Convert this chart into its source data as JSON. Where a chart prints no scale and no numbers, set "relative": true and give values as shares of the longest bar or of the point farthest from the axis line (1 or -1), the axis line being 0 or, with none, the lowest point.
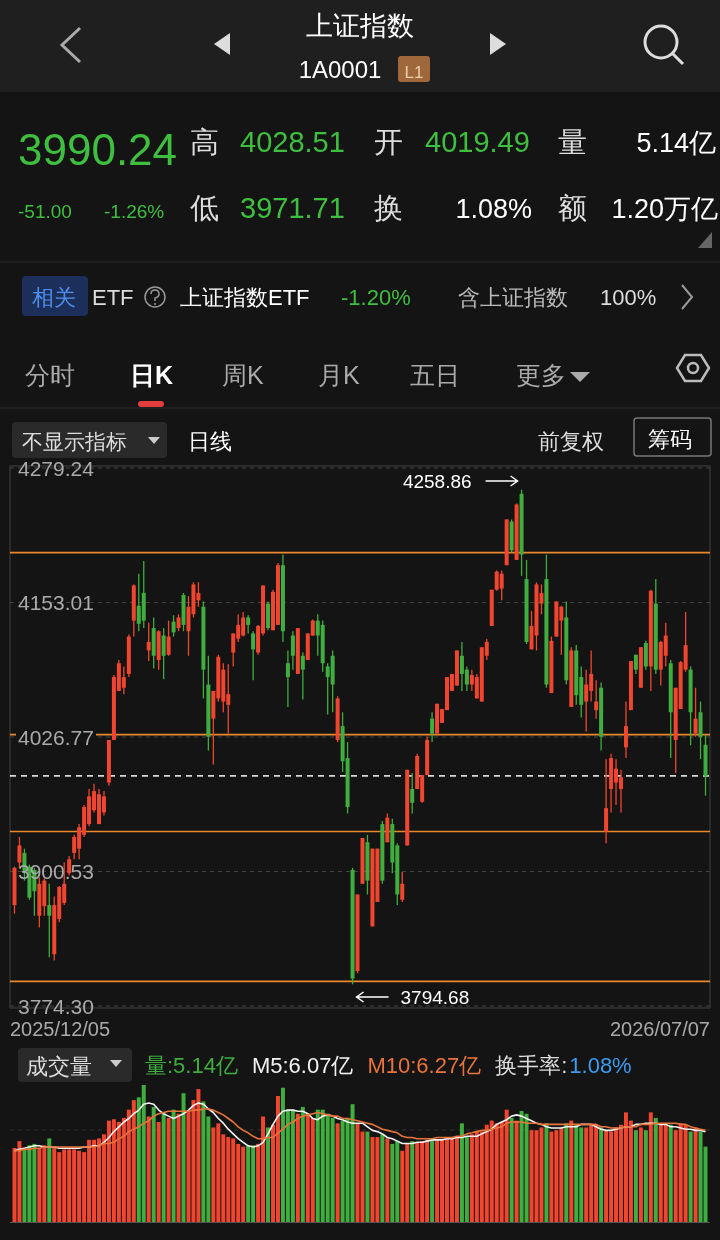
{
  "chart_data": [
    {
      "type": "other",
      "title": "上证指数",
      "subtitle": "1A0001",
      "annotations": [
        "L1",
        "3990.24",
        "-51.00",
        "-1.26%",
        "高",
        "4028.51",
        "开",
        "4019.49",
        "量",
        "5.14亿",
        "低",
        "3971.71",
        "换",
        "1.08%",
        "额",
        "1.20万亿",
        "相关",
        "ETF",
        "上证指数ETF",
        "-1.20%",
        "含上证指数",
        "100%",
        "分时",
        "日K",
        "周K",
        "月K",
        "五日",
        "更多",
        "不显示指标",
        "日线",
        "前复权",
        "筹码"
      ]
    },
    {
      "type": "candlestick",
      "ylim": [
        3774.3,
        4279.24
      ],
      "yticks": [
        {
          "value": 4279.24,
          "label": "4279.24"
        },
        {
          "value": 4153.01,
          "label": "4153.01"
        },
        {
          "value": 4026.77,
          "label": "4026.77"
        },
        {
          "value": 3900.53,
          "label": "3900.53"
        },
        {
          "value": 3774.3,
          "label": "3774.30"
        }
      ],
      "grid": "y",
      "categories": [
        null,
        null,
        null,
        null,
        null,
        null,
        null,
        null,
        null,
        null,
        null,
        null,
        null,
        null,
        null,
        null,
        null,
        null,
        null,
        null,
        null,
        null,
        null,
        null,
        null,
        null,
        null,
        null,
        null,
        null,
        null,
        null,
        null,
        null,
        null,
        null,
        null,
        null,
        null,
        null,
        null,
        null,
        null,
        null,
        null,
        null,
        null,
        null,
        null,
        null,
        null,
        null,
        null,
        null,
        null,
        null,
        null,
        null,
        null,
        null,
        null,
        null,
        null,
        null,
        null,
        null,
        null,
        null,
        null,
        null,
        null,
        null,
        null,
        null,
        null,
        null,
        null,
        null,
        null,
        null,
        null,
        null,
        null,
        null,
        null,
        null,
        null,
        null,
        null,
        null,
        null,
        null,
        null,
        null,
        null,
        null,
        null,
        null,
        null,
        null,
        null,
        null,
        null,
        null,
        null,
        null,
        null,
        null,
        null,
        null,
        null,
        null,
        null,
        null,
        null,
        null,
        null,
        null,
        null,
        null,
        null,
        null,
        null,
        null,
        null,
        null,
        null,
        null,
        null,
        null,
        null,
        null,
        null,
        null,
        null,
        null,
        null,
        null,
        null,
        null
      ],
      "ohlc": [
        [
          3869,
          3905,
          3861,
          3904
        ],
        [
          3909,
          3933,
          3904,
          3925
        ],
        [
          3918,
          3922,
          3892,
          3899
        ],
        [
          3905,
          3907,
          3874,
          3876
        ],
        [
          3902,
          3904,
          3859,
          3882
        ],
        [
          3859,
          3895,
          3848,
          3889
        ],
        [
          3868,
          3894,
          3859,
          3892
        ],
        [
          3869,
          3889,
          3820,
          3859
        ],
        [
          3823,
          3877,
          3817,
          3869
        ],
        [
          3856,
          3887,
          3853,
          3886
        ],
        [
          3871,
          3909,
          3869,
          3889
        ],
        [
          3899,
          3915,
          3897,
          3912
        ],
        [
          3918,
          3935,
          3912,
          3933
        ],
        [
          3922,
          3945,
          3912,
          3942
        ],
        [
          3935,
          3963,
          3933,
          3961
        ],
        [
          3945,
          3978,
          3943,
          3971
        ],
        [
          3958,
          3983,
          3956,
          3976
        ],
        [
          3945,
          3978,
          3945,
          3973
        ],
        [
          3956,
          3976,
          3953,
          3971
        ],
        [
          3984,
          4024,
          3981,
          4024
        ],
        [
          4024,
          4085,
          4024,
          4083
        ],
        [
          4070,
          4099,
          4070,
          4096
        ],
        [
          4073,
          4093,
          4067,
          4083
        ],
        [
          4086,
          4123,
          4083,
          4121
        ],
        [
          4136,
          4170,
          4121,
          4169
        ],
        [
          4150,
          4180,
          4126,
          4133
        ],
        [
          4162,
          4192,
          4129,
          4136
        ],
        [
          4108,
          4134,
          4098,
          4116
        ],
        [
          4129,
          4139,
          4091,
          4103
        ],
        [
          4099,
          4127,
          4090,
          4126
        ],
        [
          4122,
          4129,
          4081,
          4103
        ],
        [
          4104,
          4136,
          4103,
          4121
        ],
        [
          4135,
          4141,
          4121,
          4125
        ],
        [
          4129,
          4142,
          4126,
          4139
        ],
        [
          4160,
          4162,
          4126,
          4132
        ],
        [
          4126,
          4159,
          4103,
          4149
        ],
        [
          4142,
          4172,
          4139,
          4170
        ],
        [
          4155,
          4172,
          4149,
          4162
        ],
        [
          4149,
          4154,
          4063,
          4090
        ],
        [
          4076,
          4103,
          4014,
          4027
        ],
        [
          4044,
          4070,
          4001,
          4070
        ],
        [
          4063,
          4104,
          4060,
          4102
        ],
        [
          4060,
          4096,
          4050,
          4090
        ],
        [
          4057,
          4095,
          4030,
          4067
        ],
        [
          4106,
          4124,
          4093,
          4124
        ],
        [
          4119,
          4142,
          4116,
          4132
        ],
        [
          4122,
          4144,
          4121,
          4139
        ],
        [
          4139,
          4141,
          4124,
          4132
        ],
        [
          4124,
          4126,
          4080,
          4109
        ],
        [
          4106,
          4132,
          4104,
          4131
        ],
        [
          4124,
          4169,
          4122,
          4169
        ],
        [
          4152,
          4154,
          4127,
          4129
        ],
        [
          4127,
          4165,
          4127,
          4163
        ],
        [
          4132,
          4190,
          4132,
          4188
        ],
        [
          4188,
          4198,
          4116,
          4126
        ],
        [
          4096,
          4108,
          4055,
          4083
        ],
        [
          4122,
          4126,
          4090,
          4103
        ],
        [
          4086,
          4129,
          4086,
          4129
        ],
        [
          4103,
          4106,
          4062,
          4090
        ],
        [
          4099,
          4124,
          4099,
          4124
        ],
        [
          4122,
          4137,
          4122,
          4136
        ],
        [
          4136,
          4142,
          4103,
          4122
        ],
        [
          4132,
          4136,
          4088,
          4096
        ],
        [
          4093,
          4096,
          4048,
          4083
        ],
        [
          4103,
          4108,
          4050,
          4076
        ],
        [
          4024,
          4065,
          4022,
          4063
        ],
        [
          4037,
          4050,
          3994,
          4004
        ],
        [
          4007,
          4022,
          3955,
          3961
        ],
        [
          3902,
          3904,
          3794.68,
          3800
        ],
        [
          3807,
          3879,
          3805,
          3879
        ],
        [
          3889,
          3932,
          3889,
          3932
        ],
        [
          3928,
          3935,
          3879,
          3892
        ],
        [
          3849,
          3922,
          3849,
          3922
        ],
        [
          3872,
          3922,
          3872,
          3922
        ],
        [
          3945,
          3948,
          3889,
          3892
        ],
        [
          3928,
          3955,
          3928,
          3951
        ],
        [
          3945,
          3950,
          3899,
          3909
        ],
        [
          3925,
          3927,
          3869,
          3879
        ],
        [
          3874,
          3900,
          3872,
          3889
        ],
        [
          3925,
          3996,
          3925,
          3996
        ],
        [
          3978,
          3993,
          3955,
          3965
        ],
        [
          3978,
          4011,
          3978,
          4009
        ],
        [
          3966,
          3991,
          3965,
          3991
        ],
        [
          3991,
          4027,
          3991,
          4024
        ],
        [
          4044,
          4050,
          4022,
          4030
        ],
        [
          4030,
          4058,
          4030,
          4058
        ],
        [
          4040,
          4053,
          4040,
          4053
        ],
        [
          4052,
          4083,
          4052,
          4083
        ],
        [
          4070,
          4086,
          4070,
          4086
        ],
        [
          4075,
          4108,
          4075,
          4108
        ],
        [
          4103,
          4116,
          4070,
          4086
        ],
        [
          4090,
          4093,
          4070,
          4076
        ],
        [
          4076,
          4090,
          4070,
          4085
        ],
        [
          4063,
          4086,
          4063,
          4083
        ],
        [
          4060,
          4111,
          4060,
          4111
        ],
        [
          4103,
          4119,
          4099,
          4116
        ],
        [
          4131,
          4165,
          4131,
          4165
        ],
        [
          4165,
          4183,
          4164,
          4182
        ],
        [
          4166,
          4183,
          4155,
          4180
        ],
        [
          4188,
          4231,
          4188,
          4231
        ],
        [
          4229,
          4231,
          4200,
          4202
        ],
        [
          4193,
          4246,
          4193,
          4245
        ],
        [
          4255,
          4258.86,
          4178,
          4198
        ],
        [
          4175,
          4193,
          4114,
          4116
        ],
        [
          4109,
          4145,
          4109,
          4131
        ],
        [
          4122,
          4172,
          4108,
          4170
        ],
        [
          4152,
          4170,
          4142,
          4162
        ],
        [
          4175,
          4198,
          4073,
          4076
        ],
        [
          4068,
          4121,
          4068,
          4117
        ],
        [
          4121,
          4154,
          4121,
          4154
        ],
        [
          4136,
          4150,
          4104,
          4149
        ],
        [
          4139,
          4154,
          4076,
          4080
        ],
        [
          4055,
          4111,
          4055,
          4108
        ],
        [
          4108,
          4113,
          4057,
          4066
        ],
        [
          4083,
          4093,
          4045,
          4057
        ],
        [
          4060,
          4090,
          4032,
          4076
        ],
        [
          4070,
          4108,
          4060,
          4086
        ],
        [
          4052,
          4080,
          4044,
          4060
        ],
        [
          4073,
          4078,
          4014,
          4027
        ],
        [
          3938,
          4006,
          3927,
          3960
        ],
        [
          3978,
          4011,
          3956,
          4007
        ],
        [
          3984,
          4006,
          3963,
          3997
        ],
        [
          3978,
          3996,
          3956,
          3989
        ],
        [
          4017,
          4060,
          4007,
          4037
        ],
        [
          4052,
          4098,
          4052,
          4098
        ],
        [
          4104,
          4104,
          4086,
          4090
        ],
        [
          4073,
          4111,
          4073,
          4111
        ],
        [
          4115,
          4117,
          4090,
          4093
        ],
        [
          4093,
          4165,
          4070,
          4164
        ],
        [
          4152,
          4175,
          4086,
          4090
        ],
        [
          4090,
          4117,
          4075,
          4116
        ],
        [
          4103,
          4134,
          4093,
          4122
        ],
        [
          4096,
          4099,
          4007,
          4050
        ],
        [
          4024,
          4073,
          3993,
          4073
        ],
        [
          4053,
          4098,
          4053,
          4097
        ],
        [
          4090,
          4144,
          4088,
          4113
        ],
        [
          4090,
          4093,
          4019,
          4050
        ],
        [
          4030,
          4073,
          4027,
          4044
        ],
        [
          4050,
          4060,
          4006,
          4027
        ],
        [
          4019.49,
          4028.51,
          3971.71,
          3990.24
        ]
      ],
      "colors": [
        "#f0452f",
        "#f0452f",
        "#3fae3f",
        "#3fae3f",
        "#3fae3f",
        "#f0452f",
        "#f0452f",
        "#3fae3f",
        "#f0452f",
        "#f0452f",
        "#f0452f",
        "#f0452f",
        "#f0452f",
        "#f0452f",
        "#f0452f",
        "#f0452f",
        "#f0452f",
        "#f0452f",
        "#f0452f",
        "#f0452f",
        "#f0452f",
        "#f0452f",
        "#f0452f",
        "#f0452f",
        "#f0452f",
        "#3fae3f",
        "#3fae3f",
        "#f0452f",
        "#3fae3f",
        "#f0452f",
        "#3fae3f",
        "#f0452f",
        "#3fae3f",
        "#f0452f",
        "#3fae3f",
        "#f0452f",
        "#f0452f",
        "#f0452f",
        "#3fae3f",
        "#3fae3f",
        "#f0452f",
        "#f0452f",
        "#f0452f",
        "#f0452f",
        "#f0452f",
        "#f0452f",
        "#f0452f",
        "#3fae3f",
        "#3fae3f",
        "#f0452f",
        "#f0452f",
        "#3fae3f",
        "#f0452f",
        "#f0452f",
        "#3fae3f",
        "#3fae3f",
        "#3fae3f",
        "#f0452f",
        "#3fae3f",
        "#f0452f",
        "#f0452f",
        "#3fae3f",
        "#3fae3f",
        "#3fae3f",
        "#3fae3f",
        "#f0452f",
        "#3fae3f",
        "#3fae3f",
        "#3fae3f",
        "#f0452f",
        "#f0452f",
        "#3fae3f",
        "#f0452f",
        "#f0452f",
        "#3fae3f",
        "#f0452f",
        "#3fae3f",
        "#3fae3f",
        "#f0452f",
        "#f0452f",
        "#3fae3f",
        "#f0452f",
        "#f0452f",
        "#f0452f",
        "#3fae3f",
        "#f0452f",
        "#f0452f",
        "#f0452f",
        "#f0452f",
        "#f0452f",
        "#3fae3f",
        "#3fae3f",
        "#f0452f",
        "#f0452f",
        "#f0452f",
        "#f0452f",
        "#f0452f",
        "#f0452f",
        "#f0452f",
        "#f0452f",
        "#3fae3f",
        "#f0452f",
        "#3fae3f",
        "#3fae3f",
        "#f0452f",
        "#f0452f",
        "#f0452f",
        "#3fae3f",
        "#f0452f",
        "#f0452f",
        "#f0452f",
        "#3fae3f",
        "#f0452f",
        "#3fae3f",
        "#3fae3f",
        "#f0452f",
        "#f0452f",
        "#f0452f",
        "#3fae3f",
        "#f0452f",
        "#f0452f",
        "#f0452f",
        "#f0452f",
        "#f0452f",
        "#f0452f",
        "#3fae3f",
        "#f0452f",
        "#3fae3f",
        "#f0452f",
        "#3fae3f",
        "#f0452f",
        "#f0452f",
        "#3fae3f",
        "#f0452f",
        "#f0452f",
        "#f0452f",
        "#3fae3f",
        "#f0452f",
        "#3fae3f",
        "#3fae3f"
      ],
      "ref_lines": [
        {
          "axis": "y",
          "value": 4199.8,
          "color": "#e8892f"
        },
        {
          "axis": "y",
          "value": 4029.0,
          "color": "#e8892f"
        },
        {
          "axis": "y",
          "value": 3938.1,
          "color": "#e8892f"
        },
        {
          "axis": "y",
          "value": 3797.4,
          "color": "#e8892f"
        },
        {
          "axis": "y",
          "value": 3990.24,
          "color": "#d8d8d8",
          "line_style": "dashed"
        }
      ],
      "annotations": [
        "4258.86",
        "3794.68",
        "2025/12/05",
        "2026/07/07"
      ]
    },
    {
      "type": "bar",
      "relative": true,
      "title": "成交量",
      "annotations": [
        "量:5.14亿"
      ],
      "categories": [
        null,
        null,
        null,
        null,
        null,
        null,
        null,
        null,
        null,
        null,
        null,
        null,
        null,
        null,
        null,
        null,
        null,
        null,
        null,
        null,
        null,
        null,
        null,
        null,
        null,
        null,
        null,
        null,
        null,
        null,
        null,
        null,
        null,
        null,
        null,
        null,
        null,
        null,
        null,
        null,
        null,
        null,
        null,
        null,
        null,
        null,
        null,
        null,
        null,
        null,
        null,
        null,
        null,
        null,
        null,
        null,
        null,
        null,
        null,
        null,
        null,
        null,
        null,
        null,
        null,
        null,
        null,
        null,
        null,
        null,
        null,
        null,
        null,
        null,
        null,
        null,
        null,
        null,
        null,
        null,
        null,
        null,
        null,
        null,
        null,
        null,
        null,
        null,
        null,
        null,
        null,
        null,
        null,
        null,
        null,
        null,
        null,
        null,
        null,
        null,
        null,
        null,
        null,
        null,
        null,
        null,
        null,
        null,
        null,
        null,
        null,
        null,
        null,
        null,
        null,
        null,
        null,
        null,
        null,
        null,
        null,
        null,
        null,
        null,
        null,
        null,
        null,
        null,
        null,
        null,
        null,
        null,
        null,
        null,
        null,
        null,
        null,
        null,
        null,
        null
      ],
      "values": [
        0.54,
        0.59,
        0.54,
        0.56,
        0.57,
        0.54,
        0.56,
        0.61,
        0.54,
        0.51,
        0.53,
        0.53,
        0.53,
        0.52,
        0.51,
        0.6,
        0.6,
        0.61,
        0.64,
        0.74,
        0.75,
        0.73,
        0.76,
        0.82,
        0.89,
        0.91,
        1.0,
        0.77,
        0.84,
        0.73,
        0.8,
        0.76,
        0.82,
        0.79,
        0.94,
        0.81,
        0.89,
        0.97,
        0.88,
        0.77,
        0.69,
        0.72,
        0.64,
        0.62,
        0.61,
        0.57,
        0.55,
        0.56,
        0.56,
        0.57,
        0.77,
        0.69,
        0.71,
        0.92,
        0.98,
        0.82,
        0.82,
        0.79,
        0.84,
        0.79,
        0.76,
        0.82,
        0.82,
        0.79,
        0.76,
        0.72,
        0.74,
        0.76,
        0.86,
        0.72,
        0.66,
        0.66,
        0.62,
        0.62,
        0.64,
        0.61,
        0.57,
        0.59,
        0.52,
        0.57,
        0.59,
        0.58,
        0.59,
        0.6,
        0.6,
        0.6,
        0.6,
        0.62,
        0.62,
        0.62,
        0.72,
        0.62,
        0.64,
        0.66,
        0.66,
        0.71,
        0.74,
        0.72,
        0.73,
        0.82,
        0.76,
        0.74,
        0.81,
        0.79,
        0.67,
        0.67,
        0.69,
        0.72,
        0.66,
        0.67,
        0.69,
        0.72,
        0.74,
        0.71,
        0.69,
        0.69,
        0.71,
        0.71,
        0.69,
        0.67,
        0.66,
        0.69,
        0.71,
        0.8,
        0.74,
        0.67,
        0.69,
        0.67,
        0.8,
        0.76,
        0.71,
        0.72,
        0.71,
        0.67,
        0.72,
        0.71,
        0.66,
        0.69,
        0.66,
        0.55
      ],
      "colors": [
        "#f0452f",
        "#f0452f",
        "#3fae3f",
        "#3fae3f",
        "#3fae3f",
        "#f0452f",
        "#f0452f",
        "#3fae3f",
        "#f0452f",
        "#f0452f",
        "#f0452f",
        "#f0452f",
        "#f0452f",
        "#f0452f",
        "#f0452f",
        "#f0452f",
        "#f0452f",
        "#f0452f",
        "#f0452f",
        "#f0452f",
        "#f0452f",
        "#f0452f",
        "#f0452f",
        "#f0452f",
        "#f0452f",
        "#3fae3f",
        "#3fae3f",
        "#f0452f",
        "#3fae3f",
        "#f0452f",
        "#3fae3f",
        "#f0452f",
        "#3fae3f",
        "#f0452f",
        "#3fae3f",
        "#f0452f",
        "#f0452f",
        "#f0452f",
        "#3fae3f",
        "#3fae3f",
        "#f0452f",
        "#f0452f",
        "#f0452f",
        "#f0452f",
        "#f0452f",
        "#f0452f",
        "#f0452f",
        "#3fae3f",
        "#3fae3f",
        "#f0452f",
        "#f0452f",
        "#3fae3f",
        "#f0452f",
        "#f0452f",
        "#3fae3f",
        "#3fae3f",
        "#3fae3f",
        "#f0452f",
        "#3fae3f",
        "#f0452f",
        "#f0452f",
        "#3fae3f",
        "#3fae3f",
        "#3fae3f",
        "#3fae3f",
        "#f0452f",
        "#3fae3f",
        "#3fae3f",
        "#3fae3f",
        "#f0452f",
        "#f0452f",
        "#3fae3f",
        "#f0452f",
        "#f0452f",
        "#3fae3f",
        "#f0452f",
        "#3fae3f",
        "#3fae3f",
        "#f0452f",
        "#f0452f",
        "#3fae3f",
        "#f0452f",
        "#f0452f",
        "#f0452f",
        "#3fae3f",
        "#f0452f",
        "#f0452f",
        "#f0452f",
        "#f0452f",
        "#f0452f",
        "#3fae3f",
        "#3fae3f",
        "#f0452f",
        "#f0452f",
        "#f0452f",
        "#f0452f",
        "#f0452f",
        "#f0452f",
        "#f0452f",
        "#f0452f",
        "#3fae3f",
        "#f0452f",
        "#3fae3f",
        "#3fae3f",
        "#f0452f",
        "#f0452f",
        "#f0452f",
        "#3fae3f",
        "#f0452f",
        "#f0452f",
        "#f0452f",
        "#3fae3f",
        "#f0452f",
        "#3fae3f",
        "#3fae3f",
        "#f0452f",
        "#f0452f",
        "#f0452f",
        "#3fae3f",
        "#f0452f",
        "#f0452f",
        "#f0452f",
        "#f0452f",
        "#f0452f",
        "#f0452f",
        "#3fae3f",
        "#f0452f",
        "#3fae3f",
        "#f0452f",
        "#3fae3f",
        "#f0452f",
        "#f0452f",
        "#3fae3f",
        "#f0452f",
        "#f0452f",
        "#f0452f",
        "#3fae3f",
        "#f0452f",
        "#3fae3f",
        "#3fae3f"
      ]
    },
    {
      "type": "line",
      "relative": true,
      "legend": "top left",
      "annotations": [
        "换手率:",
        "1.08%"
      ],
      "categories": [
        null,
        null,
        null,
        null,
        null,
        null,
        null,
        null,
        null,
        null,
        null,
        null,
        null,
        null,
        null,
        null,
        null,
        null,
        null,
        null,
        null,
        null,
        null,
        null,
        null,
        null,
        null,
        null,
        null,
        null,
        null,
        null,
        null,
        null,
        null,
        null,
        null,
        null,
        null,
        null,
        null,
        null,
        null,
        null,
        null,
        null,
        null,
        null,
        null,
        null,
        null,
        null,
        null,
        null,
        null,
        null,
        null,
        null,
        null,
        null,
        null,
        null,
        null,
        null,
        null,
        null,
        null,
        null,
        null,
        null,
        null,
        null,
        null,
        null,
        null,
        null,
        null,
        null,
        null,
        null,
        null,
        null,
        null,
        null,
        null,
        null,
        null,
        null,
        null,
        null,
        null,
        null,
        null,
        null,
        null,
        null,
        null,
        null,
        null,
        null,
        null,
        null,
        null,
        null,
        null,
        null,
        null,
        null,
        null,
        null,
        null,
        null,
        null,
        null,
        null,
        null,
        null,
        null,
        null,
        null,
        null,
        null,
        null,
        null,
        null,
        null,
        null,
        null,
        null,
        null,
        null,
        null,
        null,
        null,
        null,
        null,
        null,
        null,
        null,
        null
      ],
      "series": [
        {
          "name": "M5:6.07亿",
          "color": "#f2f2f2",
          "values": [
            0.6,
            0.61,
            0.62,
            0.63,
            0.64,
            0.64,
            0.63,
            0.63,
            0.63,
            0.62,
            0.62,
            0.62,
            0.62,
            0.62,
            0.63,
            0.63,
            0.64,
            0.64,
            0.67,
            0.71,
            0.76,
            0.8,
            0.84,
            0.87,
            0.91,
            0.94,
            0.99,
            1.0,
            0.99,
            0.94,
            0.91,
            0.89,
            0.87,
            0.89,
            0.91,
            0.94,
            0.98,
            1.0,
            0.99,
            0.95,
            0.92,
            0.87,
            0.83,
            0.78,
            0.74,
            0.7,
            0.67,
            0.64,
            0.63,
            0.64,
            0.67,
            0.74,
            0.82,
            0.89,
            0.93,
            0.94,
            0.94,
            0.93,
            0.93,
            0.91,
            0.87,
            0.86,
            0.89,
            0.9,
            0.89,
            0.87,
            0.86,
            0.84,
            0.83,
            0.83,
            0.83,
            0.8,
            0.77,
            0.76,
            0.74,
            0.71,
            0.7,
            0.68,
            0.66,
            0.66,
            0.66,
            0.67,
            0.67,
            0.68,
            0.69,
            0.69,
            0.69,
            0.7,
            0.7,
            0.71,
            0.71,
            0.72,
            0.72,
            0.72,
            0.74,
            0.76,
            0.78,
            0.82,
            0.84,
            0.86,
            0.89,
            0.9,
            0.89,
            0.87,
            0.85,
            0.83,
            0.82,
            0.8,
            0.79,
            0.79,
            0.79,
            0.8,
            0.8,
            0.8,
            0.82,
            0.82,
            0.82,
            0.8,
            0.78,
            0.77,
            0.77,
            0.78,
            0.79,
            0.8,
            0.8,
            0.82,
            0.82,
            0.83,
            0.83,
            0.83,
            0.82,
            0.82,
            0.8,
            0.8,
            0.79,
            0.78,
            0.78,
            0.77,
            0.77,
            0.76
          ]
        },
        {
          "name": "M10:6.27亿",
          "color": "#e8743b",
          "values": [
            0.6,
            0.6,
            0.61,
            0.61,
            0.62,
            0.62,
            0.63,
            0.63,
            0.63,
            0.63,
            0.63,
            0.63,
            0.63,
            0.63,
            0.63,
            0.63,
            0.63,
            0.64,
            0.66,
            0.66,
            0.67,
            0.7,
            0.72,
            0.76,
            0.78,
            0.8,
            0.83,
            0.85,
            0.89,
            0.91,
            0.92,
            0.93,
            0.93,
            0.93,
            0.93,
            0.93,
            0.94,
            0.94,
            0.95,
            0.95,
            0.94,
            0.92,
            0.9,
            0.87,
            0.84,
            0.8,
            0.77,
            0.75,
            0.72,
            0.7,
            0.7,
            0.71,
            0.71,
            0.75,
            0.78,
            0.82,
            0.84,
            0.87,
            0.89,
            0.9,
            0.91,
            0.92,
            0.91,
            0.9,
            0.89,
            0.89,
            0.87,
            0.87,
            0.86,
            0.85,
            0.84,
            0.83,
            0.82,
            0.8,
            0.78,
            0.77,
            0.76,
            0.75,
            0.72,
            0.71,
            0.71,
            0.7,
            0.7,
            0.7,
            0.7,
            0.71,
            0.71,
            0.71,
            0.71,
            0.72,
            0.72,
            0.74,
            0.75,
            0.76,
            0.77,
            0.77,
            0.78,
            0.79,
            0.8,
            0.83,
            0.84,
            0.84,
            0.84,
            0.83,
            0.83,
            0.83,
            0.82,
            0.82,
            0.82,
            0.82,
            0.82,
            0.82,
            0.82,
            0.82,
            0.82,
            0.82,
            0.82,
            0.82,
            0.8,
            0.8,
            0.79,
            0.79,
            0.79,
            0.8,
            0.8,
            0.8,
            0.82,
            0.82,
            0.82,
            0.83,
            0.83,
            0.83,
            0.83,
            0.83,
            0.82,
            0.82,
            0.8,
            0.79,
            0.78,
            0.77
          ]
        }
      ]
    }
  ]
}
